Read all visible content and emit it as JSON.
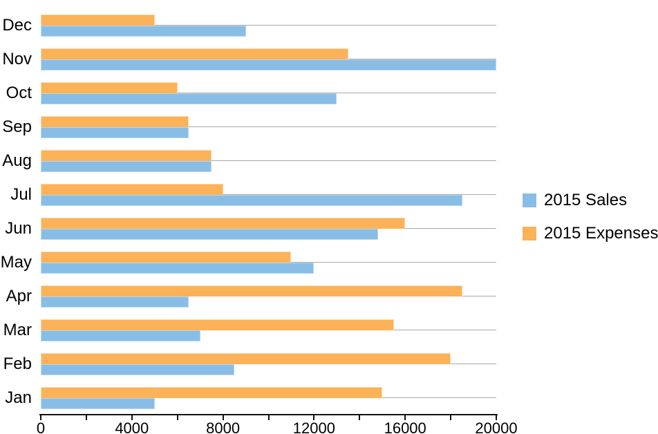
{
  "chart_data": {
    "type": "bar",
    "orientation": "horizontal",
    "title": "",
    "categories_top_to_bottom": [
      "Dec",
      "Nov",
      "Oct",
      "Sep",
      "Aug",
      "Jul",
      "Jun",
      "May",
      "Apr",
      "Mar",
      "Feb",
      "Jan"
    ],
    "bar_order_top_to_bottom_in_row": [
      "2015 Expenses",
      "2015 Sales"
    ],
    "series": [
      {
        "name": "2015 Sales",
        "color": "#88BDE6",
        "border_color": "#B8D8F0",
        "values_top_to_bottom": [
          9000,
          20000,
          13000,
          6500,
          7500,
          18500,
          14800,
          12000,
          6500,
          7000,
          8500,
          5000
        ]
      },
      {
        "name": "2015 Expenses",
        "color": "#FBB258",
        "border_color": "#FDD9A8",
        "values_top_to_bottom": [
          5000,
          13500,
          6000,
          6500,
          7500,
          8000,
          16000,
          11000,
          18500,
          15500,
          18000,
          15000
        ]
      }
    ],
    "x_axis": {
      "min": 0,
      "max": 20000,
      "minor_tick_step": 2000,
      "major_tick_labels": [
        "0",
        "4000",
        "8000",
        "12000",
        "16000",
        "20000"
      ]
    },
    "grid": "horizontal gray line at each category center",
    "legend_position": "right",
    "colors": {
      "gridline": "#A8A8A8",
      "axis": "#111111",
      "text": "#000000",
      "background": "#FFFFFF"
    }
  }
}
